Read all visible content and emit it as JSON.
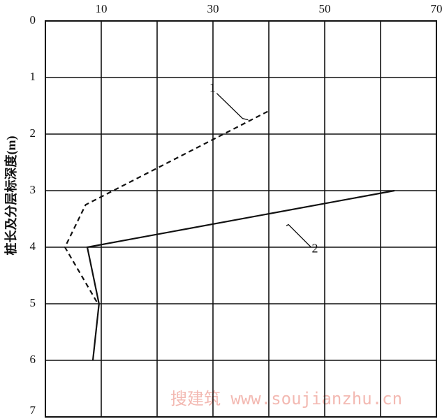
{
  "chart_data": {
    "type": "line",
    "y_label": "桩长及分层标深度(m)",
    "watermark": "搜建筑 www.soujianzhu.cn",
    "xaxis_position": "top",
    "y_inverted": true,
    "xlim": [
      0,
      70
    ],
    "xticks": [
      10,
      30,
      50,
      70
    ],
    "x_grid_lines": [
      0,
      10,
      20,
      30,
      40,
      50,
      60,
      70
    ],
    "ylim": [
      0,
      7
    ],
    "yticks": [
      0,
      1,
      2,
      3,
      4,
      5,
      6,
      7
    ],
    "grid": true,
    "series": [
      {
        "name": "1",
        "color": "#111111",
        "dash": true,
        "x": [
          39.8,
          7.2,
          3.5,
          9.4
        ],
        "values": [
          1.6,
          3.25,
          4.0,
          5.0
        ]
      },
      {
        "name": "2",
        "color": "#111111",
        "dash": false,
        "x": [
          62.5,
          7.5,
          9.6,
          8.5
        ],
        "values": [
          3.0,
          4.0,
          5.0,
          6.0
        ]
      }
    ]
  }
}
